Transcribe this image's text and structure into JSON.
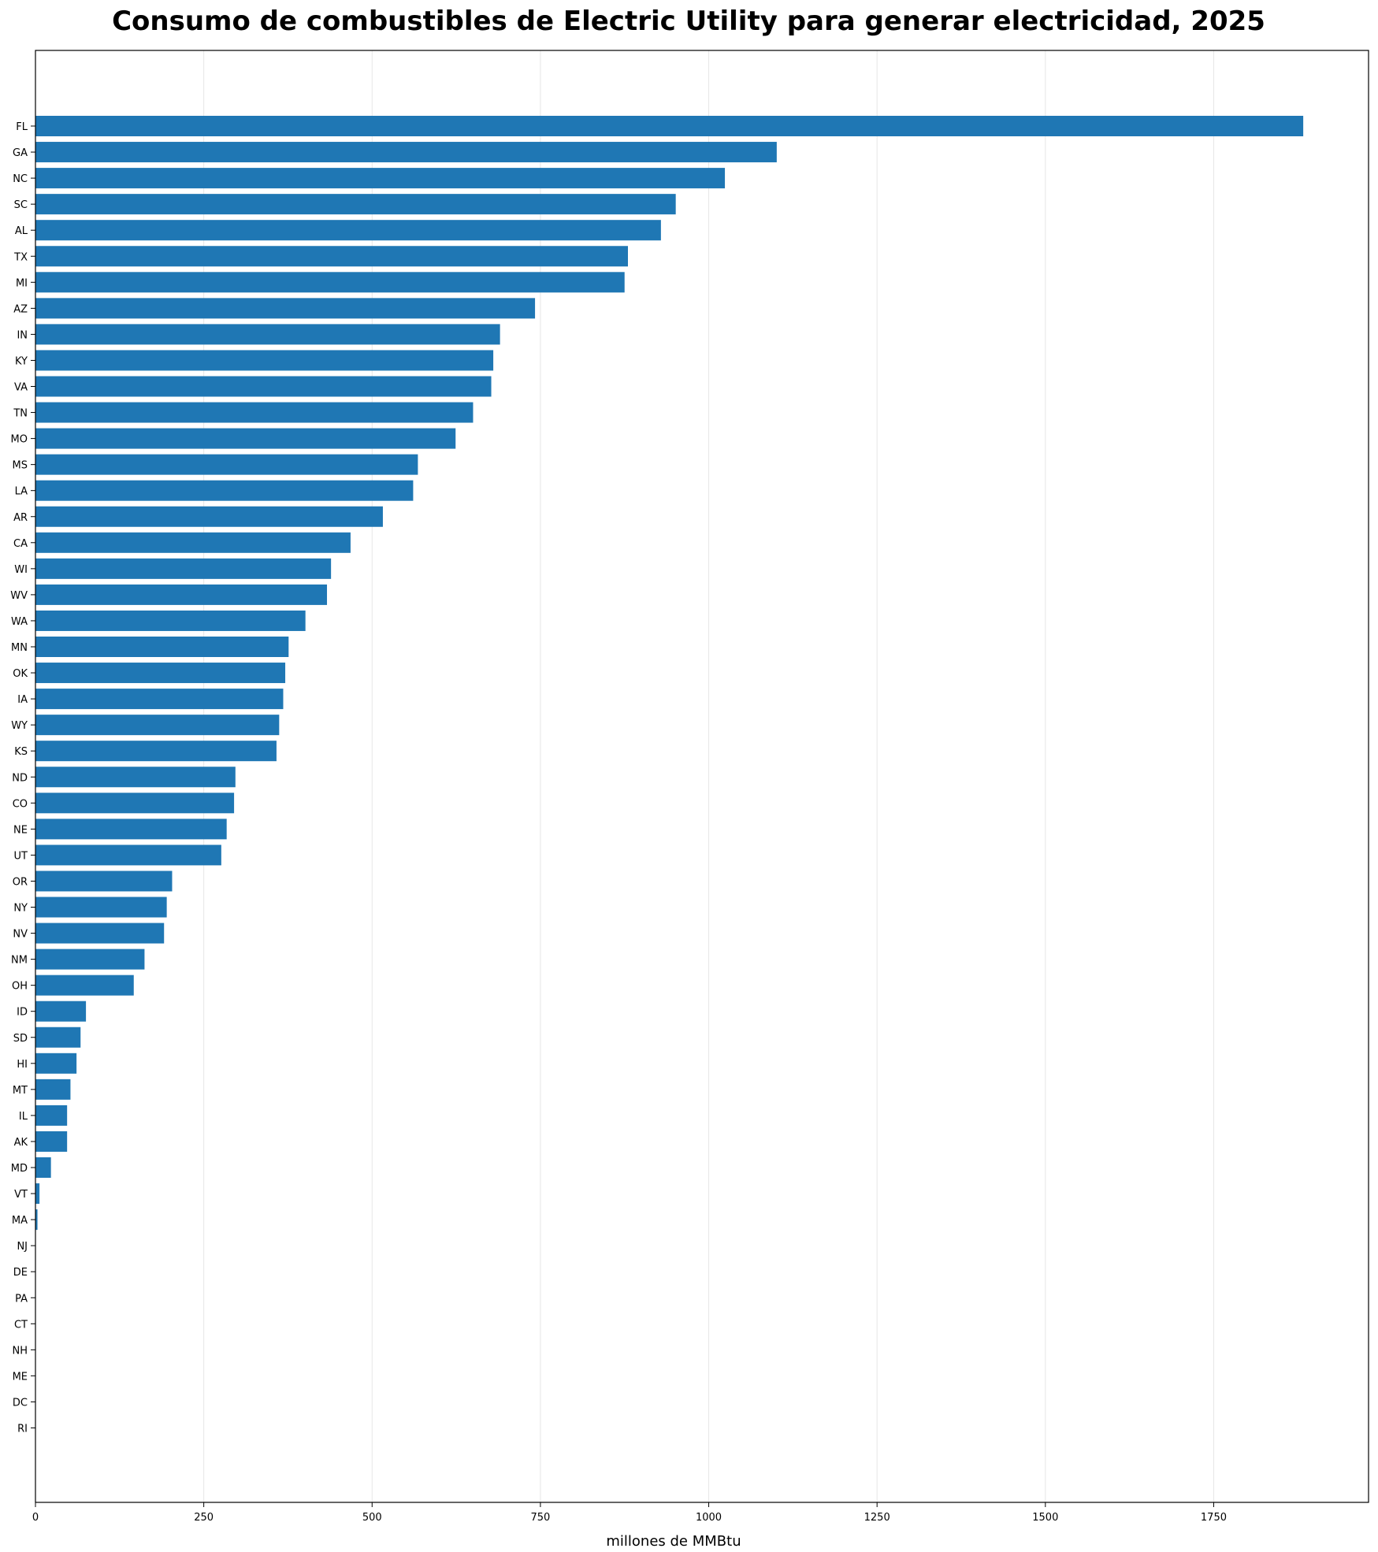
{
  "chart_data": {
    "type": "bar",
    "orientation": "horizontal",
    "title": "Consumo de combustibles de Electric Utility para generar electricidad, 2025",
    "xlabel": "millones de MMBtu",
    "ylabel": "",
    "xlim": [
      0,
      1980
    ],
    "xticks": [
      0,
      250,
      500,
      750,
      1000,
      1250,
      1500,
      1750
    ],
    "grid": "vertical",
    "bar_color": "#1f77b4",
    "categories": [
      "FL",
      "GA",
      "NC",
      "SC",
      "AL",
      "TX",
      "MI",
      "AZ",
      "IN",
      "KY",
      "VA",
      "TN",
      "MO",
      "MS",
      "LA",
      "AR",
      "CA",
      "WI",
      "WV",
      "WA",
      "MN",
      "OK",
      "IA",
      "WY",
      "KS",
      "ND",
      "CO",
      "NE",
      "UT",
      "OR",
      "NY",
      "NV",
      "NM",
      "OH",
      "ID",
      "SD",
      "HI",
      "MT",
      "IL",
      "AK",
      "MD",
      "VT",
      "MA",
      "NJ",
      "DE",
      "PA",
      "CT",
      "NH",
      "ME",
      "DC",
      "RI"
    ],
    "values": [
      1883,
      1101,
      1024,
      951,
      929,
      880,
      875,
      742,
      690,
      680,
      677,
      650,
      624,
      568,
      561,
      516,
      468,
      439,
      433,
      401,
      376,
      371,
      368,
      362,
      358,
      297,
      295,
      284,
      276,
      203,
      195,
      191,
      162,
      146,
      75,
      67,
      61,
      52,
      47,
      47,
      23,
      6,
      3,
      0,
      0,
      0,
      0,
      0,
      0,
      0,
      0
    ]
  }
}
